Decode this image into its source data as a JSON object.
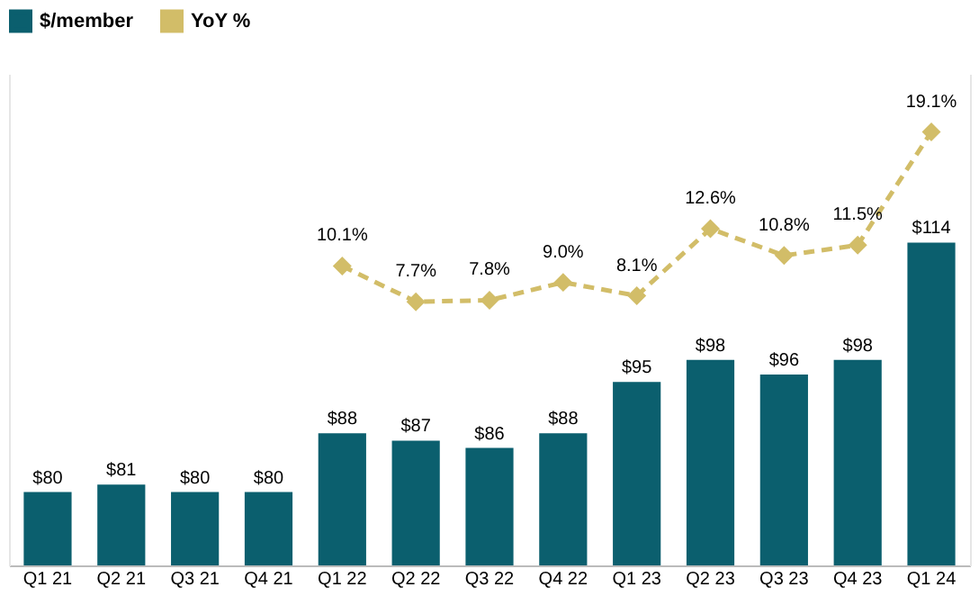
{
  "chart_data": {
    "type": "bar",
    "categories": [
      "Q1 21",
      "Q2 21",
      "Q3 21",
      "Q4 21",
      "Q1 22",
      "Q2 22",
      "Q3 22",
      "Q4 22",
      "Q1 23",
      "Q2 23",
      "Q3 23",
      "Q4 23",
      "Q1 24"
    ],
    "series": [
      {
        "name": "$/member",
        "color": "#0b5f6e",
        "values": [
          80,
          81,
          80,
          80,
          88,
          87,
          86,
          88,
          95,
          98,
          96,
          98,
          114
        ],
        "value_labels": [
          "$80",
          "$81",
          "$80",
          "$80",
          "$88",
          "$87",
          "$86",
          "$88",
          "$95",
          "$98",
          "$96",
          "$98",
          "$114"
        ]
      },
      {
        "name": "YoY %",
        "type": "line",
        "axis": "y2",
        "color": "#d2bd68",
        "marker": "diamond",
        "line_style": "dashed",
        "values": [
          null,
          null,
          null,
          null,
          10.1,
          7.7,
          7.8,
          9.0,
          8.1,
          12.6,
          10.8,
          11.5,
          19.1
        ],
        "value_labels": [
          null,
          null,
          null,
          null,
          "10.1%",
          "7.7%",
          "7.8%",
          "9.0%",
          "8.1%",
          "12.6%",
          "10.8%",
          "11.5%",
          "19.1%"
        ]
      }
    ],
    "ylim": [
      70,
      137
    ],
    "y2lim": [
      -10,
      23
    ],
    "tick_labels": "x",
    "grid": false,
    "legend": "top"
  }
}
